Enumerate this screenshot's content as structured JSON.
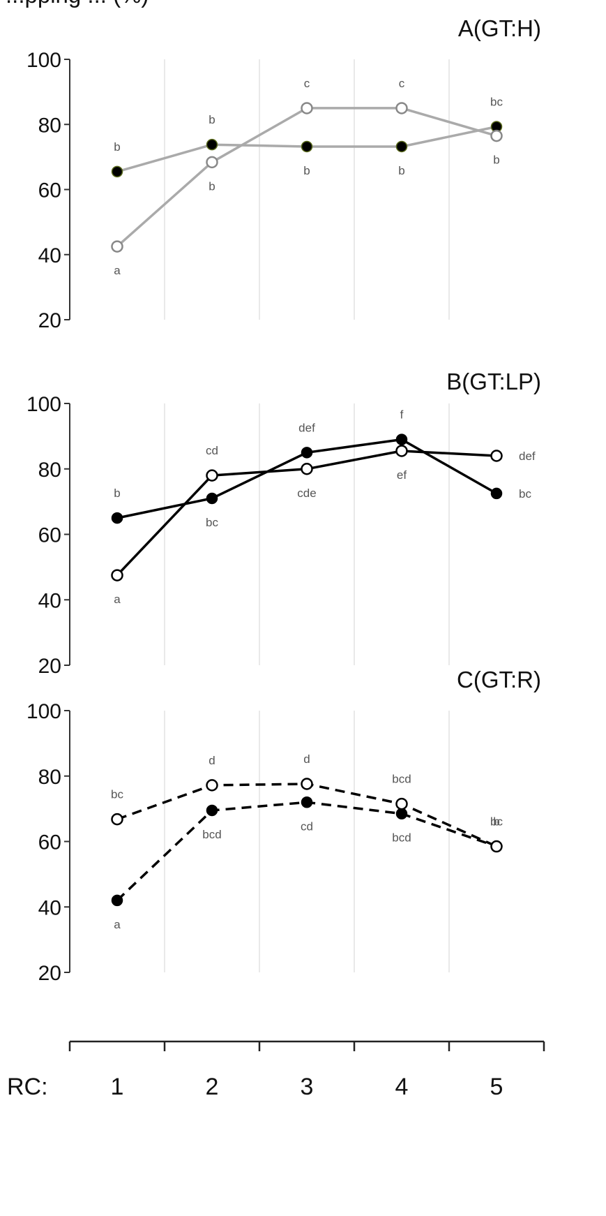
{
  "header_partial": "...pping ... (%)",
  "x_axis": {
    "label": "RC:",
    "ticks": [
      "1",
      "2",
      "3",
      "4",
      "5"
    ]
  },
  "chart_data": [
    {
      "type": "line",
      "title": "A(GT:H)",
      "x": [
        1,
        2,
        3,
        4,
        5
      ],
      "ylim": [
        20,
        100
      ],
      "yticks": [
        "20",
        "40",
        "60",
        "80",
        "100"
      ],
      "grid": true,
      "line_color": "#aaaaaa",
      "dashed": false,
      "series": [
        {
          "marker": "filled",
          "values": [
            65.5,
            73.8,
            73.2,
            73.2,
            79.3
          ],
          "letters": [
            "b",
            "b",
            "b",
            "b",
            "bc"
          ]
        },
        {
          "marker": "open",
          "values": [
            42.5,
            68.4,
            85,
            85,
            76.5
          ],
          "letters": [
            "a",
            "b",
            "c",
            "c",
            "b"
          ]
        }
      ]
    },
    {
      "type": "line",
      "title": "B(GT:LP)",
      "x": [
        1,
        2,
        3,
        4,
        5
      ],
      "ylim": [
        20,
        100
      ],
      "yticks": [
        "20",
        "40",
        "60",
        "80",
        "100"
      ],
      "grid": true,
      "line_color": "#000000",
      "dashed": false,
      "series": [
        {
          "marker": "filled",
          "values": [
            65,
            71,
            85,
            89,
            72.5
          ],
          "letters": [
            "b",
            "bc",
            "def",
            "f",
            "bc"
          ]
        },
        {
          "marker": "open",
          "values": [
            47.5,
            78,
            80,
            85.5,
            84
          ],
          "letters": [
            "a",
            "cd",
            "cde",
            "ef",
            "def"
          ]
        }
      ]
    },
    {
      "type": "line",
      "title": "C(GT:R)",
      "x": [
        1,
        2,
        3,
        4,
        5
      ],
      "ylim": [
        20,
        100
      ],
      "yticks": [
        "20",
        "40",
        "60",
        "80",
        "100"
      ],
      "grid": true,
      "line_color": "#000000",
      "dashed": true,
      "series": [
        {
          "marker": "filled",
          "values": [
            42,
            69.5,
            72,
            68.5,
            58.5
          ],
          "letters": [
            "a",
            "bcd",
            "cd",
            "bcd",
            "b"
          ]
        },
        {
          "marker": "open",
          "values": [
            66.8,
            77.2,
            77.6,
            71.5,
            58.5
          ],
          "letters": [
            "bc",
            "d",
            "d",
            "bcd",
            "bc"
          ]
        }
      ]
    }
  ]
}
